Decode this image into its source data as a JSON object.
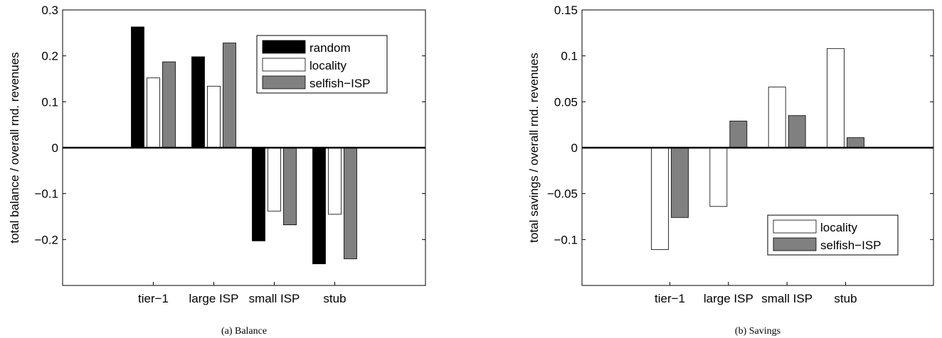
{
  "chart_data": [
    {
      "type": "bar",
      "caption": "(a)  Balance",
      "ylabel": "total balance / overall rnd. revenues",
      "xlabel": "",
      "categories": [
        "tier−1",
        "large ISP",
        "small ISP",
        "stub"
      ],
      "ylim": [
        -0.3,
        0.3
      ],
      "yticks": [
        0.3,
        0.2,
        0.1,
        0,
        -0.1,
        -0.2
      ],
      "ytick_labels": [
        "0.3",
        "0.2",
        "0.1",
        "0",
        "−0.1",
        "−0.2"
      ],
      "series": [
        {
          "name": "random",
          "color": "#000000",
          "values": [
            0.263,
            0.198,
            -0.203,
            -0.253
          ]
        },
        {
          "name": "locality",
          "color": "#ffffff",
          "values": [
            0.152,
            0.134,
            -0.138,
            -0.145
          ]
        },
        {
          "name": "selfish−ISP",
          "color": "#808080",
          "values": [
            0.187,
            0.228,
            -0.168,
            -0.242
          ]
        }
      ],
      "legend": "top-right",
      "grid": false
    },
    {
      "type": "bar",
      "caption": "(b)  Savings",
      "ylabel": "total savings / overall rnd. revenues",
      "xlabel": "",
      "categories": [
        "tier−1",
        "large ISP",
        "small ISP",
        "stub"
      ],
      "ylim": [
        -0.15,
        0.15
      ],
      "yticks": [
        0.15,
        0.1,
        0.05,
        0,
        -0.05,
        -0.1
      ],
      "ytick_labels": [
        "0.15",
        "0.1",
        "0.05",
        "0",
        "−0.05",
        "−0.1"
      ],
      "series": [
        {
          "name": "locality",
          "color": "#ffffff",
          "values": [
            -0.111,
            -0.064,
            0.066,
            0.108
          ]
        },
        {
          "name": "selfish−ISP",
          "color": "#808080",
          "values": [
            -0.076,
            0.029,
            0.035,
            0.011
          ]
        }
      ],
      "legend": "bottom-right",
      "grid": false
    }
  ]
}
